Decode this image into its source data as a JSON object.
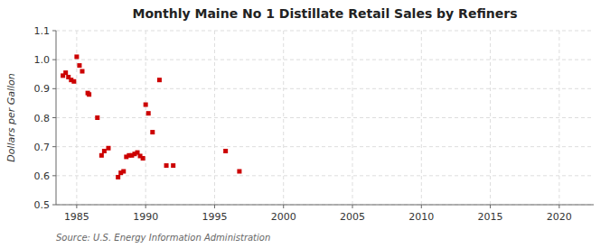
{
  "chart_data": {
    "type": "scatter",
    "title": "Monthly Maine No 1 Distillate Retail Sales by Refiners",
    "ylabel": "Dollars per Gallon",
    "annotations": [
      "Source: U.S. Energy Information Administration"
    ],
    "color": "#cc0000",
    "marker": "square",
    "grid": true,
    "xlim": [
      1983.5,
      2022.5
    ],
    "ylim": [
      0.5,
      1.1
    ],
    "xticks": [
      1985,
      1990,
      1995,
      2000,
      2005,
      2010,
      2015,
      2020
    ],
    "yticks": [
      0.5,
      0.6,
      0.7,
      0.8,
      0.9,
      {
        "value": 1.0,
        "label": "1.0"
      },
      1.1
    ],
    "x": [
      1984.0,
      1984.2,
      1984.4,
      1984.6,
      1984.8,
      1985.0,
      1985.2,
      1985.4,
      1985.8,
      1985.9,
      1986.5,
      1986.8,
      1987.0,
      1987.3,
      1988.0,
      1988.2,
      1988.4,
      1988.6,
      1988.8,
      1989.0,
      1989.2,
      1989.4,
      1989.6,
      1989.8,
      1990.0,
      1990.2,
      1990.5,
      1991.0,
      1991.5,
      1992.0,
      1995.8,
      1996.8
    ],
    "values": [
      0.945,
      0.955,
      0.94,
      0.93,
      0.925,
      1.01,
      0.98,
      0.96,
      0.885,
      0.88,
      0.8,
      0.67,
      0.685,
      0.695,
      0.595,
      0.61,
      0.615,
      0.665,
      0.67,
      0.67,
      0.675,
      0.68,
      0.668,
      0.66,
      0.845,
      0.815,
      0.75,
      0.93,
      0.635,
      0.635,
      0.685,
      0.615
    ]
  }
}
